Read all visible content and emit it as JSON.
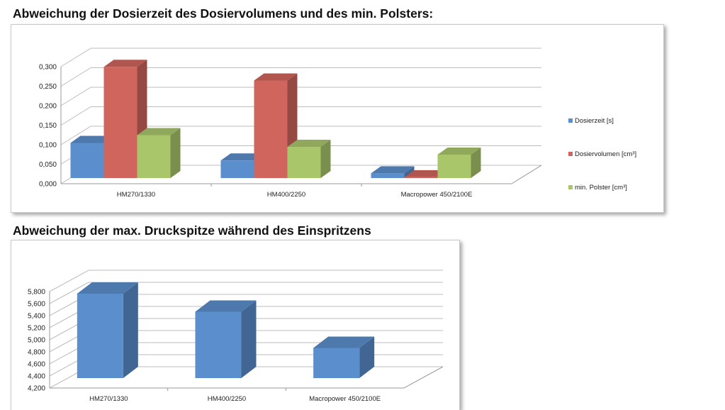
{
  "chart_data": [
    {
      "type": "bar",
      "title": "Abweichung der Dosierzeit des Dosiervolumens und des min. Polsters:",
      "categories": [
        "HM270/1330",
        "HM400/2250",
        "Macropower 450/2100E"
      ],
      "series": [
        {
          "name": "Dosierzeit [s]",
          "values": [
            0.09,
            0.045,
            0.012
          ]
        },
        {
          "name": "Dosiervolumen [cm³]",
          "values": [
            0.285,
            0.25,
            0.002
          ]
        },
        {
          "name": "min. Polster [cm³]",
          "values": [
            0.11,
            0.08,
            0.06
          ]
        }
      ],
      "y_ticks": [
        "0,000",
        "0,050",
        "0,100",
        "0,150",
        "0,200",
        "0,250",
        "0,300"
      ],
      "ylim": [
        0,
        0.3
      ],
      "grid": true,
      "legend": "right",
      "colors": {
        "Dosierzeit [s]": "#5b8ecc",
        "Dosiervolumen [cm³]": "#d0655d",
        "min. Polster [cm³]": "#a9c66b"
      }
    },
    {
      "type": "bar",
      "title": "Abweichung der max. Druckspitze während des Einspritzens",
      "categories": [
        "HM270/1330",
        "HM400/2250",
        "Macropower 450/2100E"
      ],
      "series": [
        {
          "values": [
            5.6,
            5.3,
            4.7
          ]
        }
      ],
      "y_ticks": [
        "4,200",
        "4,400",
        "4,600",
        "4,800",
        "5,000",
        "5,200",
        "5,400",
        "5,600",
        "5,800"
      ],
      "ylim": [
        4.2,
        5.8
      ],
      "grid": true,
      "colors": {
        "bar": "#5b8ecc"
      }
    }
  ]
}
